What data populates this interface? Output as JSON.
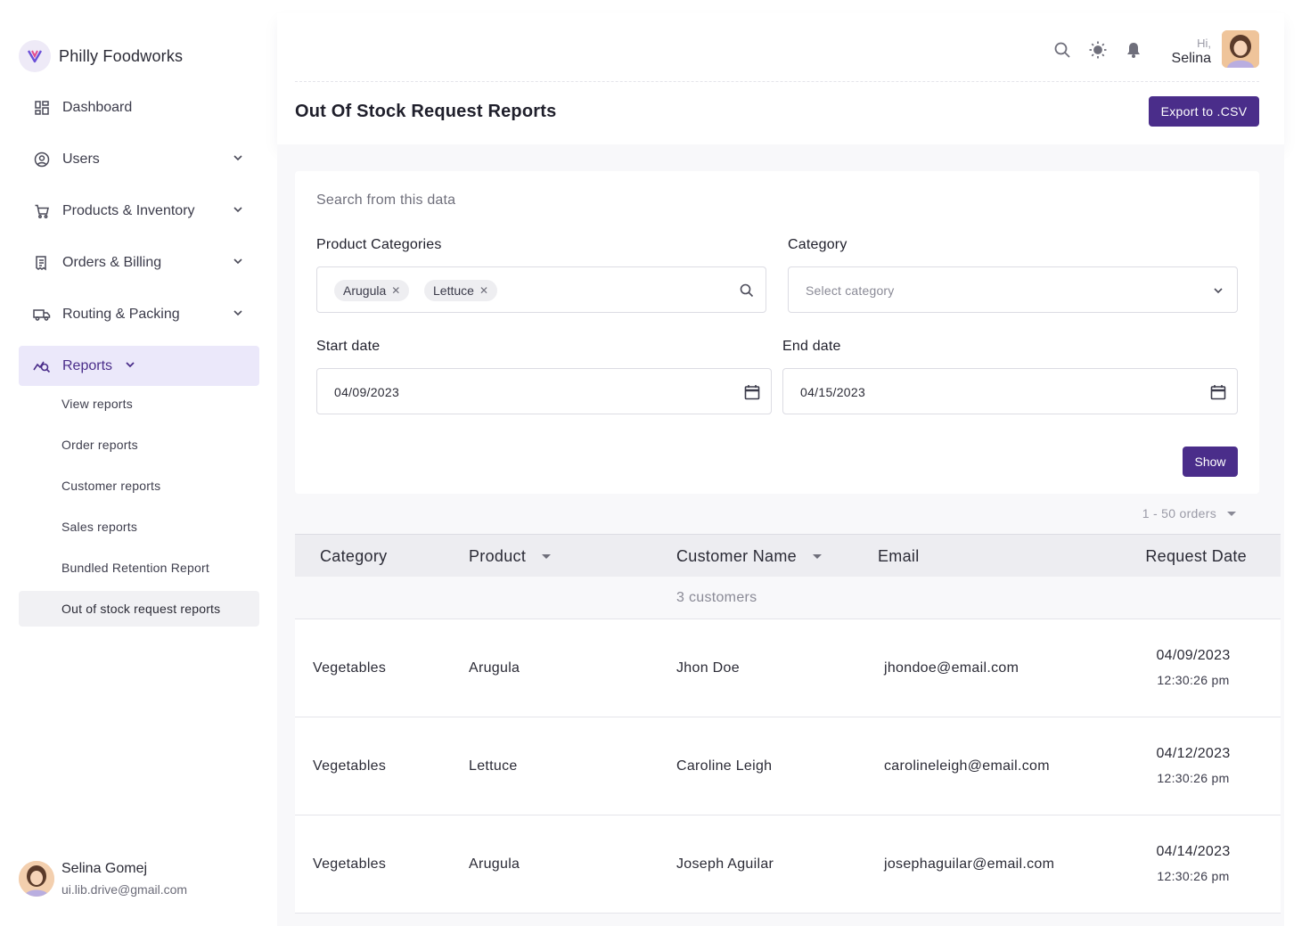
{
  "brand": {
    "name": "Philly Foodworks"
  },
  "sidebar": {
    "items": [
      {
        "label": "Dashboard",
        "icon": "dashboard-icon",
        "has_chevron": false
      },
      {
        "label": "Users",
        "icon": "user-circle-icon",
        "has_chevron": true
      },
      {
        "label": "Products & Inventory",
        "icon": "cart-icon",
        "has_chevron": true
      },
      {
        "label": "Orders & Billing",
        "icon": "receipt-icon",
        "has_chevron": true
      },
      {
        "label": "Routing & Packing",
        "icon": "truck-icon",
        "has_chevron": true
      },
      {
        "label": "Reports",
        "icon": "reports-icon",
        "has_chevron": true,
        "active": true
      }
    ],
    "sub_items": [
      {
        "label": "View reports"
      },
      {
        "label": "Order reports"
      },
      {
        "label": "Customer reports"
      },
      {
        "label": "Sales reports"
      },
      {
        "label": "Bundled Retention Report"
      },
      {
        "label": "Out of stock request reports",
        "active": true
      }
    ]
  },
  "profile": {
    "name": "Selina Gomej",
    "email": "ui.lib.drive@gmail.com"
  },
  "header": {
    "greeting": "Hi,",
    "user_name": "Selina",
    "title": "Out Of Stock Request Reports",
    "export_label": "Export to .CSV"
  },
  "filters": {
    "search_hint": "Search from this data",
    "product_categories_label": "Product Categories",
    "product_category_chips": [
      "Arugula",
      "Lettuce"
    ],
    "category_label": "Category",
    "category_placeholder": "Select category",
    "start_date_label": "Start date",
    "start_date": "04/09/2023",
    "end_date_label": "End date",
    "end_date": "04/15/2023",
    "show_label": "Show"
  },
  "pager": {
    "label": "1 - 50 orders"
  },
  "table": {
    "headers": {
      "category": "Category",
      "product": "Product",
      "customer": "Customer Name",
      "email": "Email",
      "date": "Request Date"
    },
    "group_label": "3 customers",
    "rows": [
      {
        "category": "Vegetables",
        "product": "Arugula",
        "customer": "Jhon Doe",
        "email": "jhondoe@email.com",
        "date": "04/09/2023",
        "time": "12:30:26 pm"
      },
      {
        "category": "Vegetables",
        "product": "Lettuce",
        "customer": "Caroline Leigh",
        "email": "carolineleigh@email.com",
        "date": "04/12/2023",
        "time": "12:30:26 pm"
      },
      {
        "category": "Vegetables",
        "product": "Arugula",
        "customer": "Joseph Aguilar",
        "email": "josephaguilar@email.com",
        "date": "04/14/2023",
        "time": "12:30:26 pm"
      }
    ]
  },
  "colors": {
    "accent": "#4a2d8a",
    "active_bg": "#ebe8fa",
    "page_bg": "#f8f8fa"
  }
}
